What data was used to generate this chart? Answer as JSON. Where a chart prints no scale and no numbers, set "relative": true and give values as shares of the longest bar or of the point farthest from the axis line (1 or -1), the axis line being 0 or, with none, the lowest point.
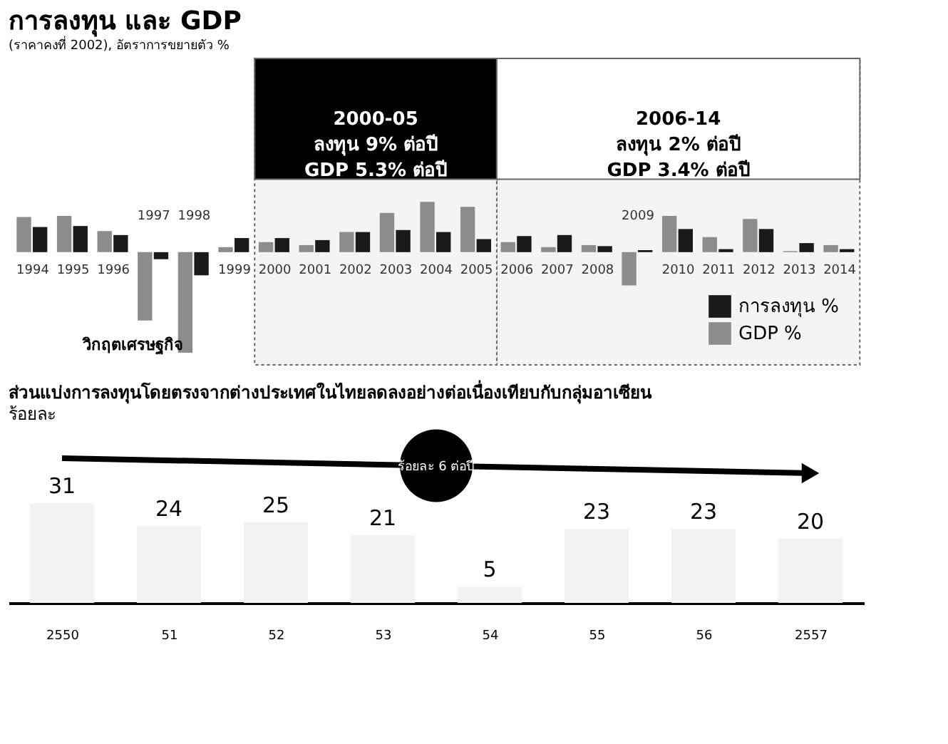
{
  "chart_data": [
    {
      "type": "bar",
      "relative": true,
      "title": "การลงทุน และ GDP",
      "subtitle": "(ราคาคงที่ 2002), อัตราการขยายตัว %",
      "categories": [
        "1994",
        "1995",
        "1996",
        "1997",
        "1998",
        "1999",
        "2000",
        "2001",
        "2002",
        "2003",
        "2004",
        "2005",
        "2006",
        "2007",
        "2008",
        "2009",
        "2010",
        "2011",
        "2012",
        "2013",
        "2014"
      ],
      "series": [
        {
          "name": "การลงทุน %",
          "color": "#1a1a1a",
          "values": [
            0.25,
            0.26,
            0.17,
            -0.07,
            -0.23,
            0.14,
            0.14,
            0.12,
            0.2,
            0.22,
            0.2,
            0.13,
            0.16,
            0.17,
            0.06,
            0.02,
            0.23,
            0.03,
            0.23,
            0.09,
            0.03
          ]
        },
        {
          "name": "GDP %",
          "color": "#8c8c8c",
          "values": [
            0.35,
            0.36,
            0.21,
            -0.68,
            -1,
            0.05,
            0.1,
            0.07,
            0.2,
            0.39,
            0.5,
            0.45,
            0.1,
            0.05,
            0.07,
            -0.33,
            0.36,
            0.15,
            0.33,
            0.01,
            0.07
          ]
        }
      ],
      "bands": [
        {
          "axis": "x",
          "from": "2000",
          "to": "2005",
          "label": "2000-05\nลงทุน 9% ต่อปี\nGDP 5.3% ต่อปี"
        },
        {
          "axis": "x",
          "from": "2006",
          "to": "2014",
          "label": "2006-14\nลงทุน 2% ต่อปี\nGDP 3.4% ต่อปี"
        }
      ],
      "annotations": [
        {
          "text": "วิกฤตเศรษฐกิจ",
          "x": "1998",
          "y": -1
        }
      ],
      "legend": "bottom right"
    },
    {
      "type": "bar",
      "title": "ส่วนแบ่งการลงทุนโดยตรงจากต่างประเทศในไทยลดลงอย่างต่อเนื่องเทียบกับกลุ่มอาเซียน",
      "subtitle": "ร้อยละ",
      "categories": [
        "2550",
        "51",
        "52",
        "53",
        "54",
        "55",
        "56",
        "2557"
      ],
      "values": [
        31,
        24,
        25,
        21,
        5,
        23,
        23,
        20
      ],
      "color": "#f2f2f2",
      "data_labels": true,
      "annotations": [
        "ร้อยละ 6 ต่อปี"
      ]
    }
  ]
}
